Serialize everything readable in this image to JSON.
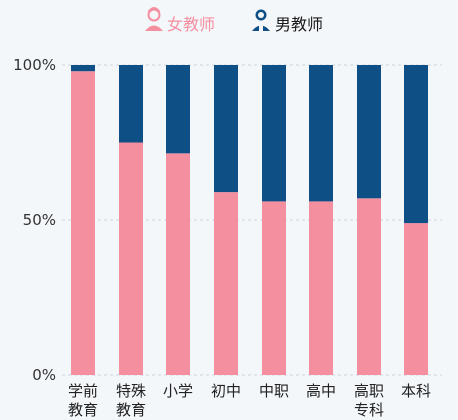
{
  "legend": {
    "female": {
      "label": "女教师",
      "color": "#f48fa0",
      "icon": "female-teacher-icon"
    },
    "male": {
      "label": "男教师",
      "color": "#0e4f86",
      "icon": "male-teacher-icon"
    }
  },
  "chart_data": {
    "type": "bar",
    "stacked": true,
    "orientation": "vertical",
    "legend_position": "top-center",
    "grid": true,
    "ylim": [
      0,
      100
    ],
    "y_ticks": [
      "0%",
      "50%",
      "100%"
    ],
    "categories": [
      [
        "学前",
        "教育"
      ],
      [
        "特殊",
        "教育"
      ],
      [
        "小学"
      ],
      [
        "初中"
      ],
      [
        "中职"
      ],
      [
        "高中"
      ],
      [
        "高职",
        "专科"
      ],
      [
        "本科"
      ]
    ],
    "series": [
      {
        "name": "女教师",
        "color": "#f48fa0",
        "values": [
          98,
          75,
          71.5,
          59,
          56,
          56,
          57,
          49
        ]
      },
      {
        "name": "男教师",
        "color": "#0e4f86",
        "values": [
          2,
          25,
          28.5,
          41,
          44,
          44,
          43,
          51
        ]
      }
    ]
  }
}
